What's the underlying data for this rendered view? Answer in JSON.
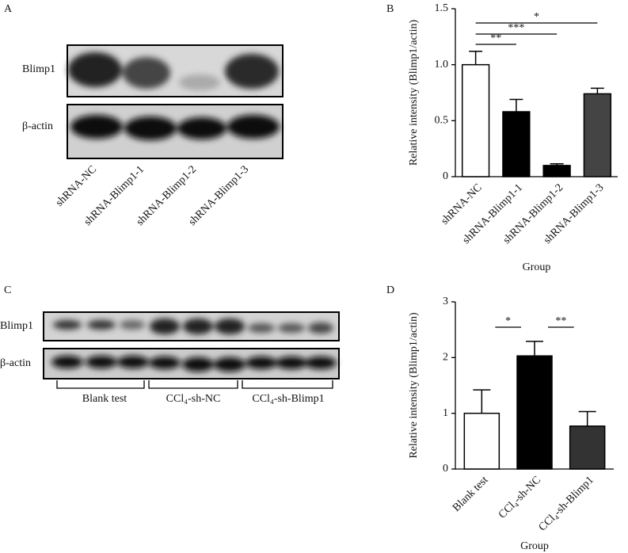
{
  "panels": [
    {
      "label": "A",
      "rows": [
        "Blimp1",
        "β-actin"
      ],
      "lanes": [
        "shRNA-NC",
        "shRNA-Blimp1-1",
        "shRNA-Blimp1-2",
        "shRNA-Blimp1-3"
      ]
    },
    {
      "label": "C",
      "rows": [
        "Blimp1",
        "β-actin"
      ],
      "groups": [
        "Blank test",
        "CCl₄-sh-NC",
        "CCl₄-sh-Blimp1"
      ]
    }
  ],
  "chart_data": [
    {
      "type": "bar",
      "panel": "B",
      "y_label": "Relative intensity (Blimp1/actin)",
      "x_label": "Group",
      "categories": [
        "shRNA-NC",
        "shRNA-Blimp1-1",
        "shRNA-Blimp1-2",
        "shRNA-Blimp1-3"
      ],
      "values": [
        1.0,
        0.58,
        0.1,
        0.74
      ],
      "errors": [
        0.12,
        0.11,
        0.015,
        0.05
      ],
      "colors": [
        "#ffffff",
        "#000000",
        "#000000",
        "#444444"
      ],
      "ylim": [
        0,
        1.5
      ],
      "yticks": [
        0,
        0.5,
        {
          "value": 1,
          "label": "1.0"
        },
        1.5
      ],
      "annotations": [
        {
          "label": "**",
          "between": [
            "shRNA-NC",
            "shRNA-Blimp1-1"
          ]
        },
        {
          "label": "***",
          "between": [
            "shRNA-NC",
            "shRNA-Blimp1-2"
          ]
        },
        {
          "label": "*",
          "between": [
            "shRNA-NC",
            "shRNA-Blimp1-3"
          ]
        }
      ]
    },
    {
      "type": "bar",
      "panel": "D",
      "y_label": "Relative intensity (Blimp1/actin)",
      "x_label": "Group",
      "categories": [
        "Blank test",
        "CCl₄-sh-NC",
        "CCl₄-sh-Blimp1"
      ],
      "values": [
        1.0,
        2.03,
        0.77
      ],
      "errors": [
        0.42,
        0.26,
        0.26
      ],
      "colors": [
        "#ffffff",
        "#000000",
        "#333333"
      ],
      "ylim": [
        0,
        3
      ],
      "yticks": [
        0,
        1,
        2,
        3
      ],
      "annotations": [
        {
          "label": "*",
          "between": [
            "Blank test",
            "CCl₄-sh-NC"
          ]
        },
        {
          "label": "**",
          "between": [
            "CCl₄-sh-NC",
            "CCl₄-sh-Blimp1"
          ]
        }
      ]
    }
  ]
}
